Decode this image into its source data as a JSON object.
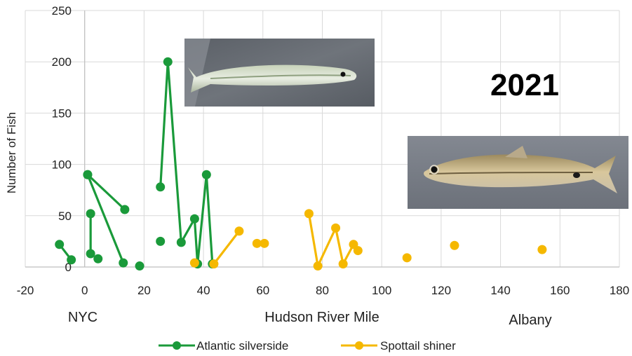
{
  "chart_data": {
    "type": "line",
    "xlabel": "Hudson River Mile",
    "ylabel": "Number of Fish",
    "xlim": [
      -20,
      180
    ],
    "ylim": [
      0,
      250
    ],
    "x_ticks": [
      "-20",
      "0",
      "20",
      "40",
      "60",
      "80",
      "100",
      "120",
      "140",
      "160",
      "180"
    ],
    "y_ticks": [
      "0",
      "50",
      "100",
      "150",
      "200",
      "250"
    ],
    "grid": "vertical and horizontal",
    "legend_position": "bottom",
    "annotations": {
      "year": "2021",
      "left_place": "NYC",
      "right_place": "Albany"
    },
    "series": [
      {
        "name": "Atlantic silverside",
        "color": "#1a9a3a",
        "segments": [
          [
            [
              -8.5,
              22
            ],
            [
              -4.5,
              7
            ]
          ],
          [
            [
              1,
              90
            ],
            [
              13.5,
              56
            ]
          ],
          [
            [
              1,
              90
            ],
            [
              13,
              4
            ]
          ],
          [
            [
              2,
              52
            ],
            [
              2,
              13
            ]
          ],
          [
            [
              4.5,
              8
            ]
          ],
          [
            [
              18.5,
              1
            ]
          ],
          [
            [
              25.5,
              78
            ],
            [
              28,
              200
            ],
            [
              32.5,
              24
            ],
            [
              37,
              47
            ],
            [
              38,
              3
            ],
            [
              41,
              90
            ],
            [
              43,
              3
            ]
          ],
          [
            [
              25.5,
              25
            ]
          ]
        ]
      },
      {
        "name": "Spottail shiner",
        "color": "#f5b800",
        "segments": [
          [
            [
              37,
              4
            ]
          ],
          [
            [
              43.5,
              3
            ],
            [
              52,
              35
            ]
          ],
          [
            [
              58,
              23
            ],
            [
              60.5,
              23
            ]
          ],
          [
            [
              75.5,
              52
            ],
            [
              78.5,
              1
            ],
            [
              84.5,
              38
            ],
            [
              87,
              3
            ],
            [
              90.5,
              22
            ],
            [
              92,
              16
            ]
          ],
          [
            [
              108.5,
              9
            ]
          ],
          [
            [
              124.5,
              21
            ]
          ],
          [
            [
              154,
              17
            ]
          ]
        ]
      }
    ]
  },
  "images": {
    "silverside_photo": "Atlantic silverside fish photo",
    "shiner_photo": "Spottail shiner fish photo"
  }
}
